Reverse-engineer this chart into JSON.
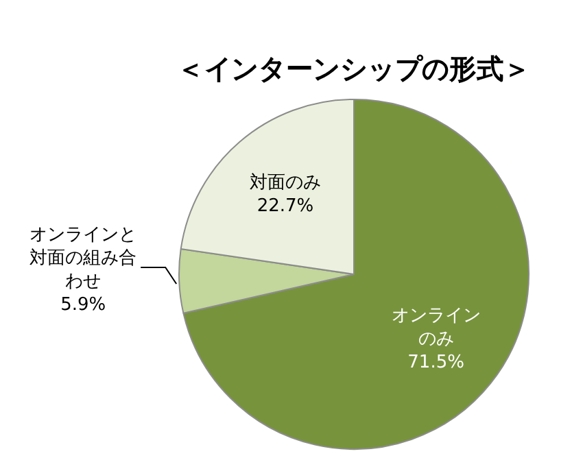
{
  "chart_data": {
    "type": "pie",
    "title": "＜インターンシップの形式＞",
    "categories": [
      "オンラインのみ",
      "オンラインと対面の組み合わせ",
      "対面のみ"
    ],
    "values": [
      71.5,
      5.9,
      22.7
    ],
    "value_labels": [
      "71.5%",
      "5.9%",
      "22.7%"
    ],
    "colors": [
      "#77933c",
      "#c3d69b",
      "#ebf1de"
    ],
    "legend": false
  }
}
